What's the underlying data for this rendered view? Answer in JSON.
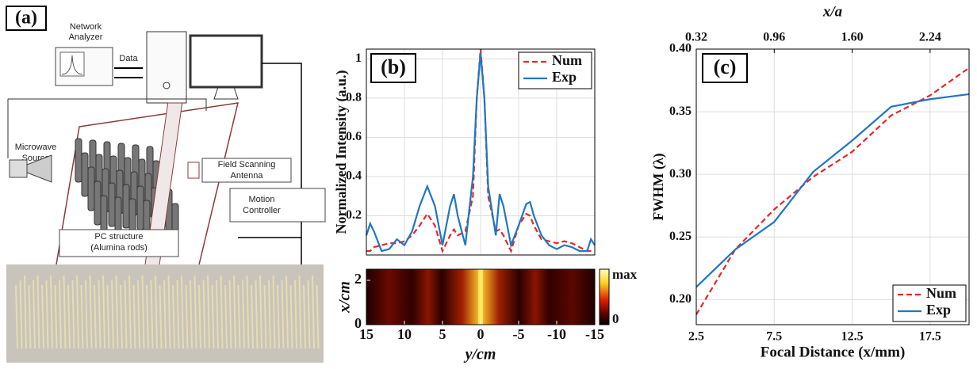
{
  "panel_a": {
    "label": "(a)",
    "network_analyzer": [
      "Network",
      "Analyzer"
    ],
    "data_arrow": "Data",
    "source": [
      "Microwave",
      "Source"
    ],
    "antenna": [
      "Field Scanning",
      "Antenna"
    ],
    "controller": [
      "Motion",
      "Controller"
    ],
    "structure": [
      "PC structure",
      "(Alumina rods)"
    ]
  },
  "chart_data": [
    {
      "type": "line",
      "panel": "(b)",
      "ylabel": "Normalized Intensity (a.u.)",
      "x": [
        15,
        14.5,
        14,
        13,
        12,
        11,
        10,
        9,
        8,
        7,
        6,
        5,
        4,
        3.5,
        3,
        2,
        1,
        0.5,
        0,
        -0.5,
        -1,
        -2,
        -2.5,
        -3,
        -4,
        -5,
        -6,
        -6.5,
        -7,
        -8,
        -9,
        -10,
        -11,
        -12,
        -13,
        -14,
        -14.5,
        -15
      ],
      "series": [
        {
          "name": "Num",
          "color": "#e8262a",
          "style": "dashed",
          "values": [
            0.02,
            0.02,
            0.04,
            0.05,
            0.06,
            0.06,
            0.07,
            0.1,
            0.15,
            0.21,
            0.15,
            0.02,
            0.1,
            0.13,
            0.1,
            0.12,
            0.3,
            0.8,
            1.05,
            0.8,
            0.3,
            0.12,
            0.13,
            0.1,
            0.02,
            0.15,
            0.21,
            0.2,
            0.15,
            0.08,
            0.07,
            0.06,
            0.07,
            0.06,
            0.04,
            0.02,
            0.02,
            0.02
          ]
        },
        {
          "name": "Exp",
          "color": "#1f77c4",
          "style": "solid",
          "values": [
            0.1,
            0.16,
            0.12,
            0.02,
            0.03,
            0.08,
            0.05,
            0.12,
            0.25,
            0.35,
            0.25,
            0.05,
            0.25,
            0.31,
            0.2,
            0.05,
            0.4,
            0.8,
            1.03,
            0.8,
            0.35,
            0.1,
            0.31,
            0.25,
            0.05,
            0.15,
            0.26,
            0.27,
            0.2,
            0.1,
            0.05,
            0.03,
            0.05,
            0.04,
            0.02,
            0.02,
            0.08,
            0.05
          ]
        }
      ],
      "xlim": [
        15,
        -15
      ],
      "ylim": [
        0,
        1.05
      ],
      "yticks": [
        0.2,
        0.4,
        0.6,
        0.8,
        1
      ],
      "grid": true,
      "legend": "upper right"
    },
    {
      "type": "heatmap",
      "xlabel": "y/cm",
      "ylabel": "x/cm",
      "xlim": [
        15,
        -15
      ],
      "xticks": [
        15,
        10,
        5,
        0,
        -5,
        -10,
        -15
      ],
      "ylim": [
        0,
        2.5
      ],
      "yticks": [
        0,
        2
      ],
      "colorbar_labels": [
        "max",
        "0"
      ]
    },
    {
      "type": "line",
      "panel": "(c)",
      "xlabel": "Focal Distance (x/mm)",
      "ylabel": "FWHM (λ)",
      "x2label": "x/a",
      "x": [
        2.5,
        5,
        7.5,
        10,
        12.5,
        15,
        17.5,
        20
      ],
      "series": [
        {
          "name": "Num",
          "color": "#e8262a",
          "style": "dashed",
          "values": [
            0.188,
            0.24,
            0.272,
            0.298,
            0.318,
            0.347,
            0.363,
            0.385
          ]
        },
        {
          "name": "Exp",
          "color": "#1f77c4",
          "style": "solid",
          "values": [
            0.21,
            0.24,
            0.262,
            0.302,
            0.327,
            0.354,
            0.36,
            0.364
          ]
        }
      ],
      "xlim": [
        2.5,
        20
      ],
      "xticks": [
        2.5,
        7.5,
        12.5,
        17.5
      ],
      "x2lim": [
        0.32,
        2.56
      ],
      "x2ticks": [
        0.32,
        0.96,
        {
          "value": 1.6,
          "label": "1.60"
        },
        2.24
      ],
      "ylim": [
        0.18,
        0.4
      ],
      "yticks": [
        {
          "value": 0.2,
          "label": "0.20"
        },
        0.25,
        {
          "value": 0.3,
          "label": "0.30"
        },
        0.35,
        {
          "value": 0.4,
          "label": "0.40"
        }
      ],
      "grid": true,
      "legend": "lower right"
    }
  ]
}
